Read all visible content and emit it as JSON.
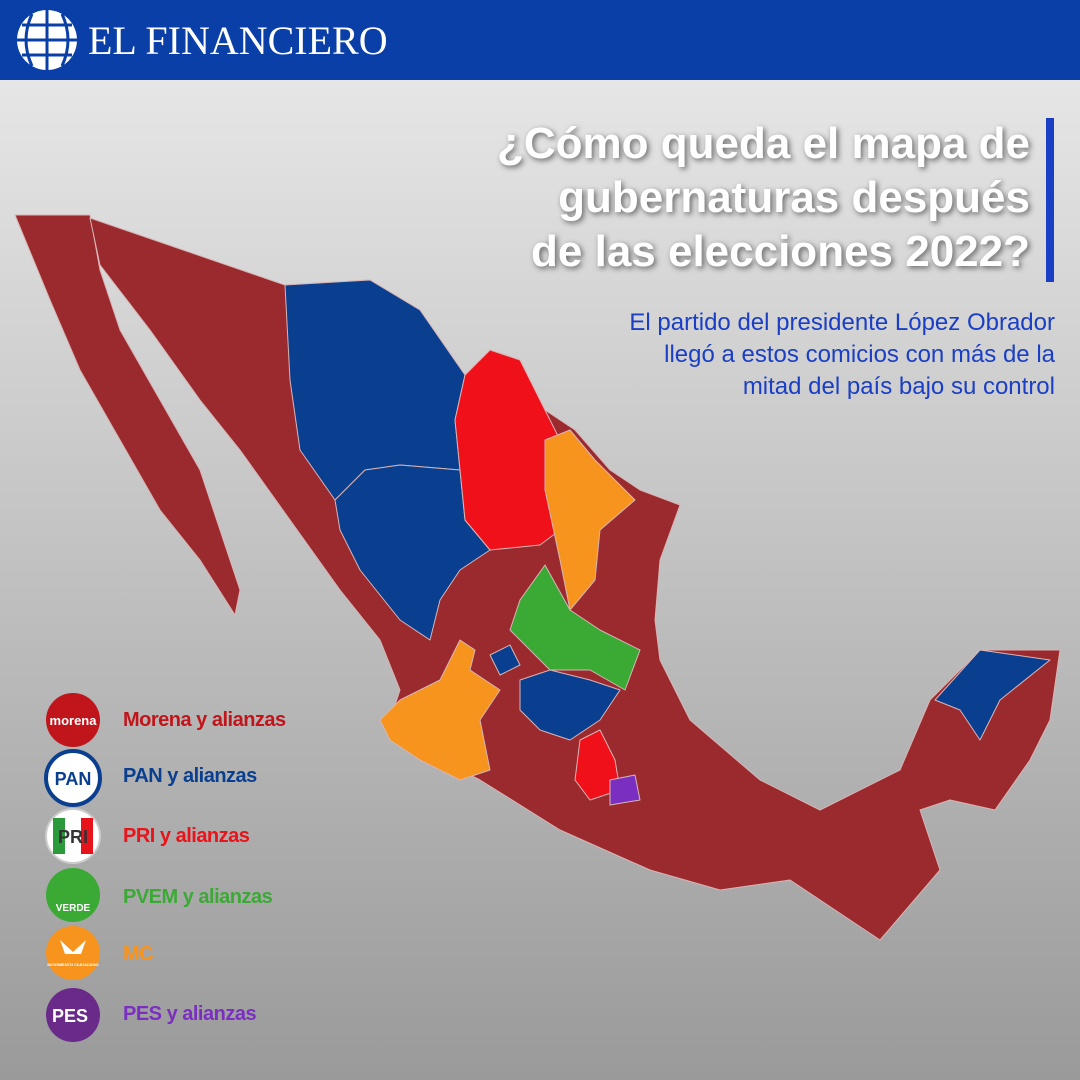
{
  "header": {
    "brand": "EL FINANCIERO"
  },
  "title": {
    "lines": [
      "¿Cómo queda el mapa de",
      "gubernaturas después",
      "de las elecciones 2022?"
    ]
  },
  "subtitle": {
    "lines": [
      "El partido del presidente López Obrador",
      "llegó a estos comicios con más de la",
      "mitad del país bajo su control"
    ]
  },
  "legend": [
    {
      "logo": "morena",
      "label": "Morena y alianzas"
    },
    {
      "logo": "PAN",
      "label": "PAN y alianzas"
    },
    {
      "logo": "PRI",
      "label": "PRI y alianzas"
    },
    {
      "logo": "VERDE",
      "label": "PVEM y alianzas"
    },
    {
      "logo": "MOVIMIENTO CIUDADANO",
      "label": "MC"
    },
    {
      "logo": "PES",
      "label": "PES y alianzas"
    }
  ]
}
